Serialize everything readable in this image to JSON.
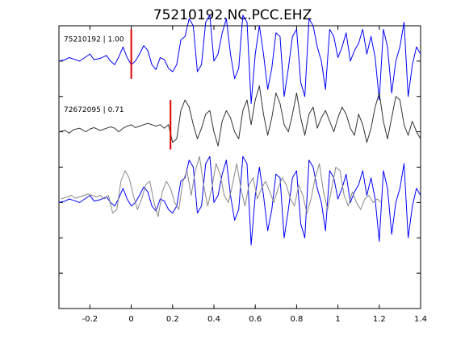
{
  "chart_data": {
    "type": "line",
    "title": "75210192.NC.PCC.EHZ",
    "xlabel": "",
    "ylabel": "",
    "xlim": [
      -0.35,
      1.4
    ],
    "xticks": [
      -0.2,
      0,
      0.2,
      0.4,
      0.6,
      0.8,
      1,
      1.2,
      1.4
    ],
    "xtick_labels": [
      "-0.2",
      "0",
      "0.2",
      "0.4",
      "0.6",
      "0.8",
      "1",
      "1.2",
      "1.4"
    ],
    "ylim": [
      -0.5,
      3.5
    ],
    "yticks": [
      0,
      0.5,
      1,
      1.5,
      2,
      2.5,
      3
    ],
    "grid": false,
    "colors": {
      "trace_primary": "#0000ff",
      "trace_secondary": "#333333",
      "overlay_secondary": "#888888",
      "pick": "#e00000",
      "axes": "#000000"
    },
    "series": [
      {
        "name": "75210192 | 1.00",
        "label": "75210192 | 1.00",
        "offset": 3,
        "color": "#0000ff",
        "pick_time": 0.0,
        "x": [
          -0.35,
          -0.32,
          -0.3,
          -0.28,
          -0.25,
          -0.22,
          -0.2,
          -0.18,
          -0.15,
          -0.12,
          -0.1,
          -0.08,
          -0.06,
          -0.04,
          -0.02,
          0.0,
          0.02,
          0.04,
          0.06,
          0.08,
          0.1,
          0.12,
          0.14,
          0.16,
          0.18,
          0.2,
          0.22,
          0.24,
          0.26,
          0.28,
          0.3,
          0.32,
          0.34,
          0.36,
          0.38,
          0.4,
          0.42,
          0.44,
          0.46,
          0.48,
          0.5,
          0.52,
          0.54,
          0.56,
          0.58,
          0.6,
          0.62,
          0.64,
          0.66,
          0.68,
          0.7,
          0.72,
          0.74,
          0.76,
          0.78,
          0.8,
          0.82,
          0.84,
          0.86,
          0.88,
          0.9,
          0.92,
          0.94,
          0.96,
          0.98,
          1.0,
          1.02,
          1.04,
          1.06,
          1.08,
          1.1,
          1.12,
          1.14,
          1.16,
          1.18,
          1.2,
          1.22,
          1.24,
          1.26,
          1.28,
          1.3,
          1.32,
          1.34,
          1.36,
          1.38,
          1.4
        ],
        "y": [
          0.0,
          0.02,
          0.05,
          0.03,
          0.0,
          0.06,
          0.1,
          0.02,
          0.04,
          0.08,
          0.0,
          -0.05,
          0.06,
          0.2,
          0.05,
          -0.05,
          0.0,
          0.1,
          0.22,
          0.15,
          -0.05,
          -0.12,
          0.05,
          0.02,
          -0.1,
          -0.15,
          -0.05,
          0.3,
          0.35,
          0.6,
          0.5,
          -0.15,
          -0.05,
          0.55,
          0.65,
          0.0,
          0.1,
          0.4,
          0.6,
          0.1,
          -0.25,
          -0.1,
          0.65,
          0.55,
          -0.6,
          0.1,
          0.5,
          0.1,
          -0.4,
          -0.1,
          0.4,
          0.35,
          -0.5,
          -0.1,
          0.35,
          0.45,
          -0.3,
          -0.5,
          0.6,
          0.5,
          0.2,
          0.0,
          -0.4,
          0.45,
          0.35,
          0.05,
          0.2,
          0.4,
          0.0,
          0.15,
          0.25,
          0.45,
          0.1,
          0.35,
          0.05,
          -0.55,
          0.45,
          0.2,
          -0.45,
          0.0,
          0.2,
          0.55,
          -0.5,
          -0.05,
          0.2,
          0.1
        ]
      },
      {
        "name": "72672095 | 0.71",
        "label": "72672095 | 0.71",
        "offset": 2,
        "color": "#333333",
        "pick_time": 0.19,
        "x": [
          -0.35,
          -0.32,
          -0.3,
          -0.28,
          -0.25,
          -0.22,
          -0.2,
          -0.18,
          -0.15,
          -0.12,
          -0.1,
          -0.08,
          -0.06,
          -0.04,
          -0.02,
          0.0,
          0.02,
          0.04,
          0.06,
          0.08,
          0.1,
          0.12,
          0.14,
          0.16,
          0.18,
          0.2,
          0.22,
          0.24,
          0.26,
          0.28,
          0.3,
          0.32,
          0.34,
          0.36,
          0.38,
          0.4,
          0.42,
          0.44,
          0.46,
          0.48,
          0.5,
          0.52,
          0.54,
          0.56,
          0.58,
          0.6,
          0.62,
          0.64,
          0.66,
          0.68,
          0.7,
          0.72,
          0.74,
          0.76,
          0.78,
          0.8,
          0.82,
          0.84,
          0.86,
          0.88,
          0.9,
          0.92,
          0.94,
          0.96,
          0.98,
          1.0,
          1.02,
          1.04,
          1.06,
          1.08,
          1.1,
          1.12,
          1.14,
          1.16,
          1.18,
          1.2,
          1.22,
          1.24,
          1.26,
          1.28,
          1.3,
          1.32,
          1.34,
          1.36,
          1.38,
          1.4
        ],
        "y": [
          0.0,
          0.02,
          -0.02,
          0.03,
          0.05,
          0.0,
          0.04,
          0.06,
          0.02,
          0.05,
          0.07,
          0.05,
          0.0,
          0.05,
          0.08,
          0.1,
          0.06,
          0.08,
          0.1,
          0.12,
          0.1,
          0.08,
          0.1,
          0.05,
          0.1,
          -0.15,
          -0.1,
          0.3,
          0.45,
          0.35,
          0.1,
          -0.1,
          0.05,
          0.25,
          0.3,
          0.0,
          -0.2,
          0.15,
          0.3,
          0.2,
          0.0,
          -0.1,
          0.3,
          0.45,
          0.1,
          0.45,
          0.65,
          0.25,
          -0.05,
          0.2,
          0.55,
          0.4,
          0.1,
          0.0,
          0.25,
          0.55,
          0.2,
          -0.05,
          0.25,
          0.35,
          0.05,
          0.2,
          0.3,
          0.15,
          0.0,
          0.2,
          0.35,
          0.25,
          0.05,
          -0.05,
          0.25,
          0.1,
          -0.15,
          0.05,
          0.35,
          0.55,
          0.15,
          -0.1,
          0.2,
          0.5,
          0.45,
          0.1,
          -0.05,
          0.15,
          0.0,
          -0.1
        ]
      },
      {
        "name": "overlay 75210192",
        "label": "",
        "offset": 1,
        "color": "#0000ff",
        "x": [
          -0.35,
          -0.32,
          -0.3,
          -0.28,
          -0.25,
          -0.22,
          -0.2,
          -0.18,
          -0.15,
          -0.12,
          -0.1,
          -0.08,
          -0.06,
          -0.04,
          -0.02,
          0.0,
          0.02,
          0.04,
          0.06,
          0.08,
          0.1,
          0.12,
          0.14,
          0.16,
          0.18,
          0.2,
          0.22,
          0.24,
          0.26,
          0.28,
          0.3,
          0.32,
          0.34,
          0.36,
          0.38,
          0.4,
          0.42,
          0.44,
          0.46,
          0.48,
          0.5,
          0.52,
          0.54,
          0.56,
          0.58,
          0.6,
          0.62,
          0.64,
          0.66,
          0.68,
          0.7,
          0.72,
          0.74,
          0.76,
          0.78,
          0.8,
          0.82,
          0.84,
          0.86,
          0.88,
          0.9,
          0.92,
          0.94,
          0.96,
          0.98,
          1.0,
          1.02,
          1.04,
          1.06,
          1.08,
          1.1,
          1.12,
          1.14,
          1.16,
          1.18,
          1.2,
          1.22,
          1.24,
          1.26,
          1.28,
          1.3,
          1.32,
          1.34,
          1.36,
          1.38,
          1.4
        ],
        "y": [
          0.0,
          0.02,
          0.05,
          0.03,
          0.0,
          0.06,
          0.1,
          0.02,
          0.04,
          0.08,
          0.0,
          -0.05,
          0.06,
          0.2,
          0.05,
          -0.05,
          0.0,
          0.1,
          0.22,
          0.15,
          -0.05,
          -0.12,
          0.05,
          0.02,
          -0.1,
          -0.15,
          -0.05,
          0.3,
          0.35,
          0.6,
          0.5,
          -0.15,
          -0.05,
          0.55,
          0.65,
          0.0,
          0.1,
          0.4,
          0.6,
          0.1,
          -0.25,
          -0.1,
          0.65,
          0.55,
          -0.6,
          0.1,
          0.5,
          0.1,
          -0.4,
          -0.1,
          0.4,
          0.35,
          -0.5,
          -0.1,
          0.35,
          0.45,
          -0.3,
          -0.5,
          0.6,
          0.5,
          0.2,
          0.0,
          -0.4,
          0.45,
          0.35,
          0.05,
          0.2,
          0.4,
          0.0,
          0.15,
          0.25,
          0.45,
          0.1,
          0.35,
          0.05,
          -0.55,
          0.45,
          0.2,
          -0.45,
          0.0,
          0.2,
          0.55,
          -0.5,
          -0.05,
          0.2,
          0.1
        ]
      },
      {
        "name": "overlay 72672095",
        "label": "",
        "offset": 1,
        "color": "#888888",
        "time_shift": -0.19,
        "x": [
          -0.35,
          -0.32,
          -0.3,
          -0.28,
          -0.25,
          -0.22,
          -0.2,
          -0.18,
          -0.15,
          -0.12,
          -0.1,
          -0.08,
          -0.06,
          -0.04,
          -0.02,
          0.0,
          0.02,
          0.04,
          0.06,
          0.08,
          0.1,
          0.12,
          0.14,
          0.16,
          0.18,
          0.2,
          0.22,
          0.24,
          0.26,
          0.28,
          0.3,
          0.32,
          0.34,
          0.36,
          0.38,
          0.4,
          0.42,
          0.44,
          0.46,
          0.48,
          0.5,
          0.52,
          0.54,
          0.56,
          0.58,
          0.6,
          0.62,
          0.64,
          0.66,
          0.68,
          0.7,
          0.72,
          0.74,
          0.76,
          0.78,
          0.8,
          0.82,
          0.84,
          0.86,
          0.88,
          0.9,
          0.92,
          0.94,
          0.96,
          0.98,
          1.0,
          1.02,
          1.04,
          1.06,
          1.08,
          1.1,
          1.12,
          1.14,
          1.16,
          1.18,
          1.2,
          1.22,
          1.24,
          1.26,
          1.28,
          1.3,
          1.32,
          1.34,
          1.36,
          1.38,
          1.4
        ],
        "y": [
          0.05,
          0.02,
          0.04,
          0.06,
          0.05,
          0.07,
          0.05,
          0.0,
          0.05,
          0.08,
          0.1,
          0.06,
          0.08,
          0.1,
          0.12,
          0.1,
          0.08,
          0.1,
          0.05,
          0.1,
          -0.15,
          -0.1,
          0.3,
          0.45,
          0.35,
          0.1,
          -0.1,
          0.05,
          0.25,
          0.3,
          0.0,
          -0.2,
          0.15,
          0.3,
          0.2,
          0.0,
          -0.1,
          0.3,
          0.45,
          0.1,
          0.45,
          0.65,
          0.25,
          -0.05,
          0.2,
          0.55,
          0.4,
          0.1,
          0.0,
          0.25,
          0.55,
          0.2,
          -0.05,
          0.25,
          0.35,
          0.05,
          0.2,
          0.3,
          0.15,
          0.0,
          0.2,
          0.35,
          0.25,
          0.05,
          -0.05,
          0.25,
          0.1,
          -0.15,
          0.05,
          0.35,
          0.55,
          0.15,
          -0.1,
          0.2,
          0.5,
          0.45,
          0.1,
          -0.05,
          0.15,
          0.0,
          -0.1,
          0.05,
          0.1,
          0.0,
          0.05,
          0.0
        ]
      }
    ]
  }
}
